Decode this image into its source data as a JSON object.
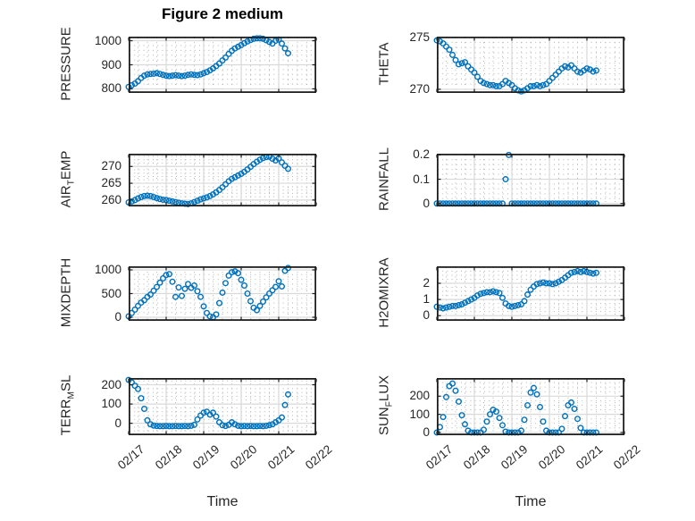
{
  "figure": {
    "title": "Figure 2 medium"
  },
  "chart_data": {
    "type": "scatter",
    "title": "Figure 2 medium",
    "xlabel": "Time",
    "marker": "open-circle",
    "marker_color": "#0072BD",
    "axis_color": "#1f1f1f",
    "major_grid_color": "#d9d9d9",
    "minor_grid_color": "#b3b3b3",
    "grid": "major solid, minor dotted, box on",
    "layout": "4 rows x 2 columns of subplots sharing time axis",
    "xlim_days": [
      0,
      5
    ],
    "x_tick_values": [
      0,
      1,
      2,
      3,
      4,
      5
    ],
    "x_tick_labels": [
      "02/17",
      "02/18",
      "02/19",
      "02/20",
      "02/21",
      "02/22"
    ],
    "x_days": [
      0,
      0.083,
      0.167,
      0.25,
      0.333,
      0.417,
      0.5,
      0.583,
      0.667,
      0.75,
      0.833,
      0.917,
      1,
      1.083,
      1.167,
      1.25,
      1.333,
      1.417,
      1.5,
      1.583,
      1.667,
      1.75,
      1.833,
      1.917,
      2,
      2.083,
      2.167,
      2.25,
      2.333,
      2.417,
      2.5,
      2.583,
      2.667,
      2.75,
      2.833,
      2.917,
      3,
      3.083,
      3.167,
      3.25,
      3.333,
      3.417,
      3.5,
      3.583,
      3.667,
      3.75,
      3.833,
      3.917,
      4,
      4.083,
      4.167,
      4.25
    ],
    "panels": [
      {
        "name": "pressure",
        "row": 0,
        "col": 0,
        "ylabel": "PRESSURE",
        "ylabel_parts": [
          {
            "t": "PRESSURE"
          }
        ],
        "yticks": [
          800,
          900,
          1000
        ],
        "ytick_labels": [
          "800",
          "900",
          "1000"
        ],
        "ylim": [
          783,
          1017
        ],
        "minor_step": 20,
        "values": [
          808,
          815,
          822,
          832,
          845,
          855,
          860,
          862,
          863,
          865,
          862,
          858,
          855,
          853,
          855,
          857,
          855,
          853,
          855,
          858,
          860,
          858,
          857,
          860,
          865,
          870,
          877,
          885,
          895,
          905,
          918,
          930,
          945,
          958,
          968,
          975,
          982,
          990,
          997,
          1003,
          1008,
          1010,
          1010,
          1008,
          1002,
          995,
          988,
          1000,
          1005,
          988,
          968,
          948
        ]
      },
      {
        "name": "theta",
        "row": 0,
        "col": 1,
        "ylabel": "THETA",
        "ylabel_parts": [
          {
            "t": "THETA"
          }
        ],
        "yticks": [
          270,
          275
        ],
        "ytick_labels": [
          "270",
          "275"
        ],
        "ylim": [
          269.65,
          275.05
        ],
        "minor_step": 0.5,
        "values": [
          274.7,
          274.6,
          274.4,
          274.1,
          273.8,
          273.3,
          272.8,
          272.4,
          272.5,
          272.6,
          272.2,
          271.9,
          271.6,
          271.2,
          270.8,
          270.6,
          270.5,
          270.4,
          270.4,
          270.3,
          270.3,
          270.5,
          270.8,
          270.6,
          270.4,
          270.1,
          269.9,
          269.8,
          269.9,
          270.1,
          270.3,
          270.3,
          270.4,
          270.3,
          270.4,
          270.5,
          270.8,
          271.1,
          271.4,
          271.7,
          272,
          272.2,
          272.1,
          272.3,
          272,
          271.7,
          271.6,
          271.8,
          272,
          271.9,
          271.7,
          271.8
        ]
      },
      {
        "name": "air-temp",
        "row": 1,
        "col": 0,
        "ylabel": "AIR_TEMP",
        "ylabel_parts": [
          {
            "t": "AIR"
          },
          {
            "t": "T",
            "sub": true
          },
          {
            "t": "EMP"
          }
        ],
        "yticks": [
          260,
          265,
          270
        ],
        "ytick_labels": [
          "260",
          "265",
          "270"
        ],
        "ylim": [
          258.1,
          273.8
        ],
        "minor_step": 1,
        "values": [
          259.3,
          259.6,
          260,
          260.5,
          260.9,
          261.2,
          261.3,
          261.2,
          260.9,
          260.6,
          260.3,
          260.1,
          260,
          259.8,
          259.6,
          259.4,
          259.2,
          259,
          258.9,
          258.8,
          259,
          259.4,
          259.8,
          260.2,
          260.5,
          260.8,
          261.2,
          261.7,
          262.3,
          263,
          263.8,
          264.7,
          265.6,
          266.3,
          266.8,
          267.3,
          267.8,
          268.4,
          269.1,
          269.9,
          270.7,
          271.4,
          272,
          272.5,
          272.8,
          272.9,
          272.3,
          271.8,
          272.4,
          271.2,
          270.2,
          269.3
        ]
      },
      {
        "name": "rainfall",
        "row": 1,
        "col": 1,
        "ylabel": "RAINFALL",
        "ylabel_parts": [
          {
            "t": "RAINFALL"
          }
        ],
        "yticks": [
          0,
          0.1,
          0.2
        ],
        "ytick_labels": [
          "0",
          "0.1",
          "0.2"
        ],
        "ylim": [
          -0.012,
          0.205
        ],
        "minor_step": 0.02,
        "values": [
          0,
          0,
          0,
          0,
          0,
          0,
          0,
          0,
          0,
          0,
          0,
          0,
          0,
          0,
          0,
          0,
          0,
          0,
          0,
          0,
          0,
          0,
          0.1,
          0.2,
          0,
          0,
          0,
          0,
          0,
          0,
          0,
          0,
          0,
          0,
          0,
          0,
          0,
          0,
          0,
          0,
          0,
          0,
          0,
          0,
          0,
          0,
          0,
          0,
          0,
          0,
          0,
          0
        ]
      },
      {
        "name": "mixdepth",
        "row": 2,
        "col": 0,
        "ylabel": "MIXDEPTH",
        "ylabel_parts": [
          {
            "t": "MIXDEPTH"
          }
        ],
        "yticks": [
          0,
          500,
          1000
        ],
        "ytick_labels": [
          "0",
          "500",
          "1000"
        ],
        "ylim": [
          -75,
          1075
        ],
        "minor_step": 100,
        "values": [
          20,
          90,
          160,
          240,
          310,
          360,
          430,
          480,
          560,
          640,
          730,
          820,
          890,
          910,
          750,
          430,
          630,
          450,
          600,
          700,
          620,
          670,
          550,
          430,
          230,
          90,
          20,
          0,
          60,
          300,
          520,
          720,
          880,
          950,
          970,
          930,
          790,
          670,
          500,
          340,
          200,
          150,
          240,
          330,
          420,
          500,
          570,
          640,
          760,
          650,
          980,
          1040
        ]
      },
      {
        "name": "h2omixra",
        "row": 2,
        "col": 1,
        "ylabel": "H2OMIXRA",
        "ylabel_parts": [
          {
            "t": "H2OMIXRA"
          }
        ],
        "yticks": [
          0,
          1,
          2
        ],
        "ytick_labels": [
          "0",
          "1",
          "2"
        ],
        "ylim": [
          -0.32,
          3.05
        ],
        "minor_step": 0.25,
        "values": [
          0.55,
          0.5,
          0.45,
          0.5,
          0.55,
          0.6,
          0.6,
          0.65,
          0.7,
          0.8,
          0.9,
          1,
          1.1,
          1.25,
          1.35,
          1.4,
          1.45,
          1.45,
          1.5,
          1.45,
          1.4,
          1.1,
          0.75,
          0.6,
          0.55,
          0.6,
          0.65,
          0.7,
          0.9,
          1.3,
          1.6,
          1.8,
          1.95,
          2,
          2.05,
          2,
          2,
          1.95,
          2,
          2.1,
          2.2,
          2.35,
          2.5,
          2.65,
          2.7,
          2.75,
          2.7,
          2.75,
          2.7,
          2.65,
          2.6,
          2.65
        ]
      },
      {
        "name": "terr-msl",
        "row": 3,
        "col": 0,
        "ylabel": "TERR_MSL",
        "ylabel_parts": [
          {
            "t": "TERR"
          },
          {
            "t": "M",
            "sub": true
          },
          {
            "t": "SL"
          }
        ],
        "yticks": [
          0,
          100,
          200
        ],
        "ytick_labels": [
          "0",
          "100",
          "200"
        ],
        "ylim": [
          -62,
          235
        ],
        "minor_step": 20,
        "values": [
          225,
          212,
          195,
          178,
          130,
          75,
          15,
          -5,
          -12,
          -14,
          -15,
          -15,
          -14,
          -15,
          -15,
          -14,
          -15,
          -15,
          -14,
          -15,
          -13,
          -8,
          20,
          40,
          55,
          60,
          45,
          55,
          35,
          5,
          -10,
          -14,
          -8,
          5,
          -5,
          -13,
          -15,
          -14,
          -15,
          -14,
          -15,
          -15,
          -14,
          -15,
          -13,
          -10,
          -5,
          5,
          15,
          30,
          95,
          150
        ]
      },
      {
        "name": "sun-flux",
        "row": 3,
        "col": 1,
        "ylabel": "SUN_FLUX",
        "ylabel_parts": [
          {
            "t": "SUN"
          },
          {
            "t": "F",
            "sub": true
          },
          {
            "t": "LUX"
          }
        ],
        "yticks": [
          0,
          100,
          200
        ],
        "ytick_labels": [
          "0",
          "100",
          "200"
        ],
        "ylim": [
          -15,
          300
        ],
        "minor_step": 25,
        "values": [
          0,
          30,
          85,
          195,
          255,
          270,
          230,
          170,
          95,
          45,
          10,
          0,
          0,
          0,
          0,
          15,
          60,
          100,
          125,
          115,
          80,
          40,
          5,
          0,
          0,
          0,
          0,
          10,
          70,
          150,
          220,
          245,
          210,
          140,
          60,
          10,
          0,
          0,
          0,
          0,
          20,
          90,
          150,
          165,
          130,
          75,
          25,
          0,
          0,
          0,
          0,
          0
        ]
      }
    ]
  }
}
